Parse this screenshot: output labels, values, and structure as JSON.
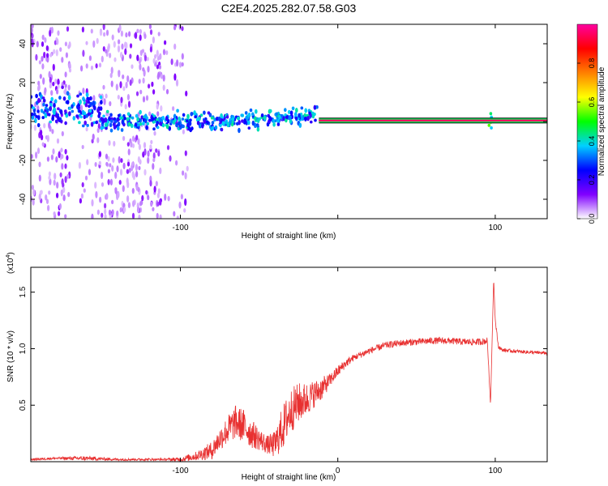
{
  "title": "C2E4.2025.282.07.58.G03",
  "chart_data": [
    {
      "type": "heatmap",
      "name": "spectrogram",
      "xlabel": "Height of straight line (km)",
      "ylabel": "Frequency (Hz)",
      "xlim": [
        -195,
        133
      ],
      "ylim": [
        -50,
        50
      ],
      "x_ticks": [
        -100,
        0,
        100
      ],
      "x_tick_labels": [
        "-100",
        "",
        "100"
      ],
      "y_ticks": [
        -40,
        -20,
        0,
        20,
        40
      ],
      "y_tick_labels": [
        "-40",
        "-20",
        "0",
        "20",
        "40"
      ],
      "grid": false,
      "colorbar": {
        "label": "Normalized spectral amplitude",
        "range": [
          0,
          1
        ],
        "ticks": [
          0.0,
          0.2,
          0.4,
          0.6,
          0.8
        ],
        "tick_labels": [
          "0.0",
          "0.2",
          "0.4",
          "0.6",
          "0.8"
        ],
        "colors": [
          "#ffffff",
          "#8000ff",
          "#0000ff",
          "#00d0ff",
          "#00ff00",
          "#ffff00",
          "#ff8000",
          "#ff0000",
          "#ff00a0"
        ]
      },
      "features": [
        {
          "x_range": [
            -12,
            133
          ],
          "frequency": 0.5,
          "amplitude": 0.95,
          "description": "carrier line"
        },
        {
          "x_range": [
            -115,
            -12
          ],
          "frequency": 1,
          "amplitude": 0.5,
          "description": "noisy doppler band"
        },
        {
          "x_range": [
            -195,
            -150
          ],
          "frequency": 6,
          "amplitude": 0.3
        },
        {
          "x": 97,
          "frequency": 2,
          "amplitude": 0.55
        }
      ]
    },
    {
      "type": "line",
      "name": "snr",
      "xlabel": "Height of straight line (km)",
      "ylabel": "SNR (10 * v/v)",
      "y_scale_label": "(x10",
      "y_scale_exponent": "4",
      "xlim": [
        -195,
        133
      ],
      "ylim": [
        0,
        1.72
      ],
      "x_ticks": [
        -100,
        0,
        100
      ],
      "x_tick_labels": [
        "-100",
        "0",
        "100"
      ],
      "y_ticks": [
        0.5,
        1.0,
        1.5
      ],
      "y_tick_labels": [
        "0.5",
        "1.0",
        "1.5"
      ],
      "grid": false,
      "series": [
        {
          "name": "SNR",
          "color": "#e83030",
          "x": [
            -195,
            -180,
            -160,
            -140,
            -120,
            -110,
            -100,
            -90,
            -80,
            -75,
            -70,
            -65,
            -60,
            -55,
            -50,
            -45,
            -40,
            -35,
            -30,
            -25,
            -20,
            -15,
            -10,
            -5,
            0,
            5,
            10,
            20,
            30,
            40,
            50,
            60,
            70,
            80,
            90,
            95,
            97,
            99,
            100,
            102,
            104,
            110,
            120,
            133
          ],
          "y": [
            0.02,
            0.03,
            0.03,
            0.02,
            0.02,
            0.02,
            0.02,
            0.05,
            0.1,
            0.2,
            0.28,
            0.35,
            0.32,
            0.25,
            0.2,
            0.15,
            0.15,
            0.3,
            0.45,
            0.52,
            0.55,
            0.6,
            0.65,
            0.72,
            0.8,
            0.87,
            0.92,
            0.98,
            1.03,
            1.05,
            1.06,
            1.07,
            1.07,
            1.06,
            1.06,
            1.07,
            0.5,
            1.62,
            1.25,
            1.02,
            0.99,
            0.98,
            0.97,
            0.96
          ],
          "noise": [
            0.01,
            0.01,
            0.02,
            0.01,
            0.01,
            0.01,
            0.02,
            0.04,
            0.08,
            0.1,
            0.13,
            0.15,
            0.15,
            0.13,
            0.1,
            0.08,
            0.12,
            0.2,
            0.2,
            0.18,
            0.15,
            0.12,
            0.1,
            0.06,
            0.05,
            0.04,
            0.03,
            0.03,
            0.03,
            0.03,
            0.03,
            0.03,
            0.03,
            0.03,
            0.03,
            0.03,
            0,
            0,
            0.02,
            0.02,
            0.015,
            0.015,
            0.015,
            0.015
          ]
        }
      ]
    }
  ]
}
